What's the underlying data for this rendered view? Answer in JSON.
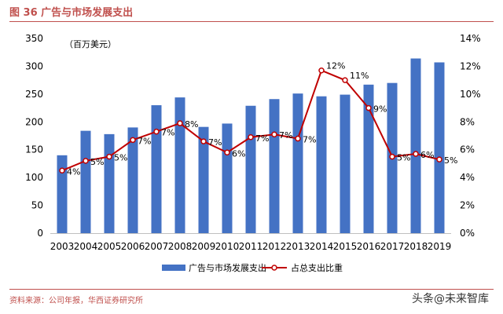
{
  "page": {
    "figure_title": "图 36 广告与市场发展支出",
    "source": "资料来源：公司年报，华西证券研究所",
    "watermark": "头条@未来智库"
  },
  "colors": {
    "bar": "#4472c4",
    "line": "#c00000",
    "marker_fill": "#ffffff",
    "title": "#c0504d"
  },
  "chart_data": {
    "type": "bar",
    "unit_label": "（百万美元）",
    "categories": [
      "2003",
      "2004",
      "2005",
      "2006",
      "2007",
      "2008",
      "2009",
      "2010",
      "2011",
      "2012",
      "2013",
      "2014",
      "2015",
      "2016",
      "2017",
      "2018",
      "2019"
    ],
    "series": [
      {
        "name": "广告与市场发展支出",
        "type": "bar",
        "axis": "left",
        "values": [
          140,
          184,
          178,
          190,
          230,
          244,
          191,
          197,
          229,
          241,
          251,
          246,
          249,
          267,
          270,
          314,
          307
        ]
      },
      {
        "name": "占总支出比重",
        "type": "line",
        "axis": "right",
        "values": [
          4.5,
          5.2,
          5.5,
          6.7,
          7.3,
          7.9,
          6.6,
          5.8,
          6.9,
          7.1,
          6.8,
          11.7,
          11.0,
          9.0,
          5.5,
          5.7,
          5.3
        ],
        "labels": [
          "4%",
          "5%",
          "5%",
          "7%",
          "7%",
          "8%",
          "7%",
          "6%",
          "7%",
          "7%",
          "7%",
          "12%",
          "11%",
          "9%",
          "5%",
          "6%",
          "5%"
        ]
      }
    ],
    "left_axis": {
      "ylim": [
        0,
        350
      ],
      "ticks": [
        "0",
        "50",
        "100",
        "150",
        "200",
        "250",
        "300",
        "350"
      ]
    },
    "right_axis": {
      "ylim": [
        0,
        14
      ],
      "ticks": [
        "0%",
        "2%",
        "4%",
        "6%",
        "8%",
        "10%",
        "12%",
        "14%"
      ]
    },
    "grid": false,
    "legend_position": "bottom"
  }
}
